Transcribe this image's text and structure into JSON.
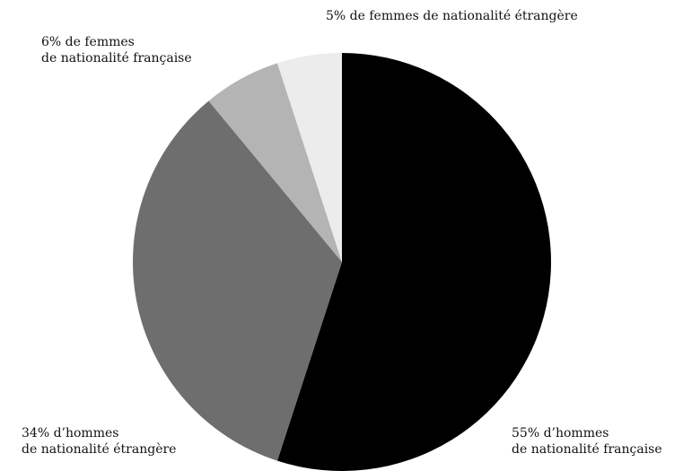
{
  "chart_data": {
    "type": "pie",
    "title": "",
    "start_angle_deg": 0,
    "direction": "clockwise",
    "legend": "none",
    "slices": [
      {
        "value": 55,
        "line1": "55% d’hommes",
        "line2": "de nationalité française",
        "color": "#000000"
      },
      {
        "value": 34,
        "line1": "34% d’hommes",
        "line2": "de nationalité étrangère",
        "color": "#6e6e6e"
      },
      {
        "value": 6,
        "line1": "6% de femmes",
        "line2": "de nationalité française",
        "color": "#b4b4b4"
      },
      {
        "value": 5,
        "line1": "5% de femmes de nationalité étrangère",
        "line2": "",
        "color": "#ececec"
      }
    ]
  }
}
